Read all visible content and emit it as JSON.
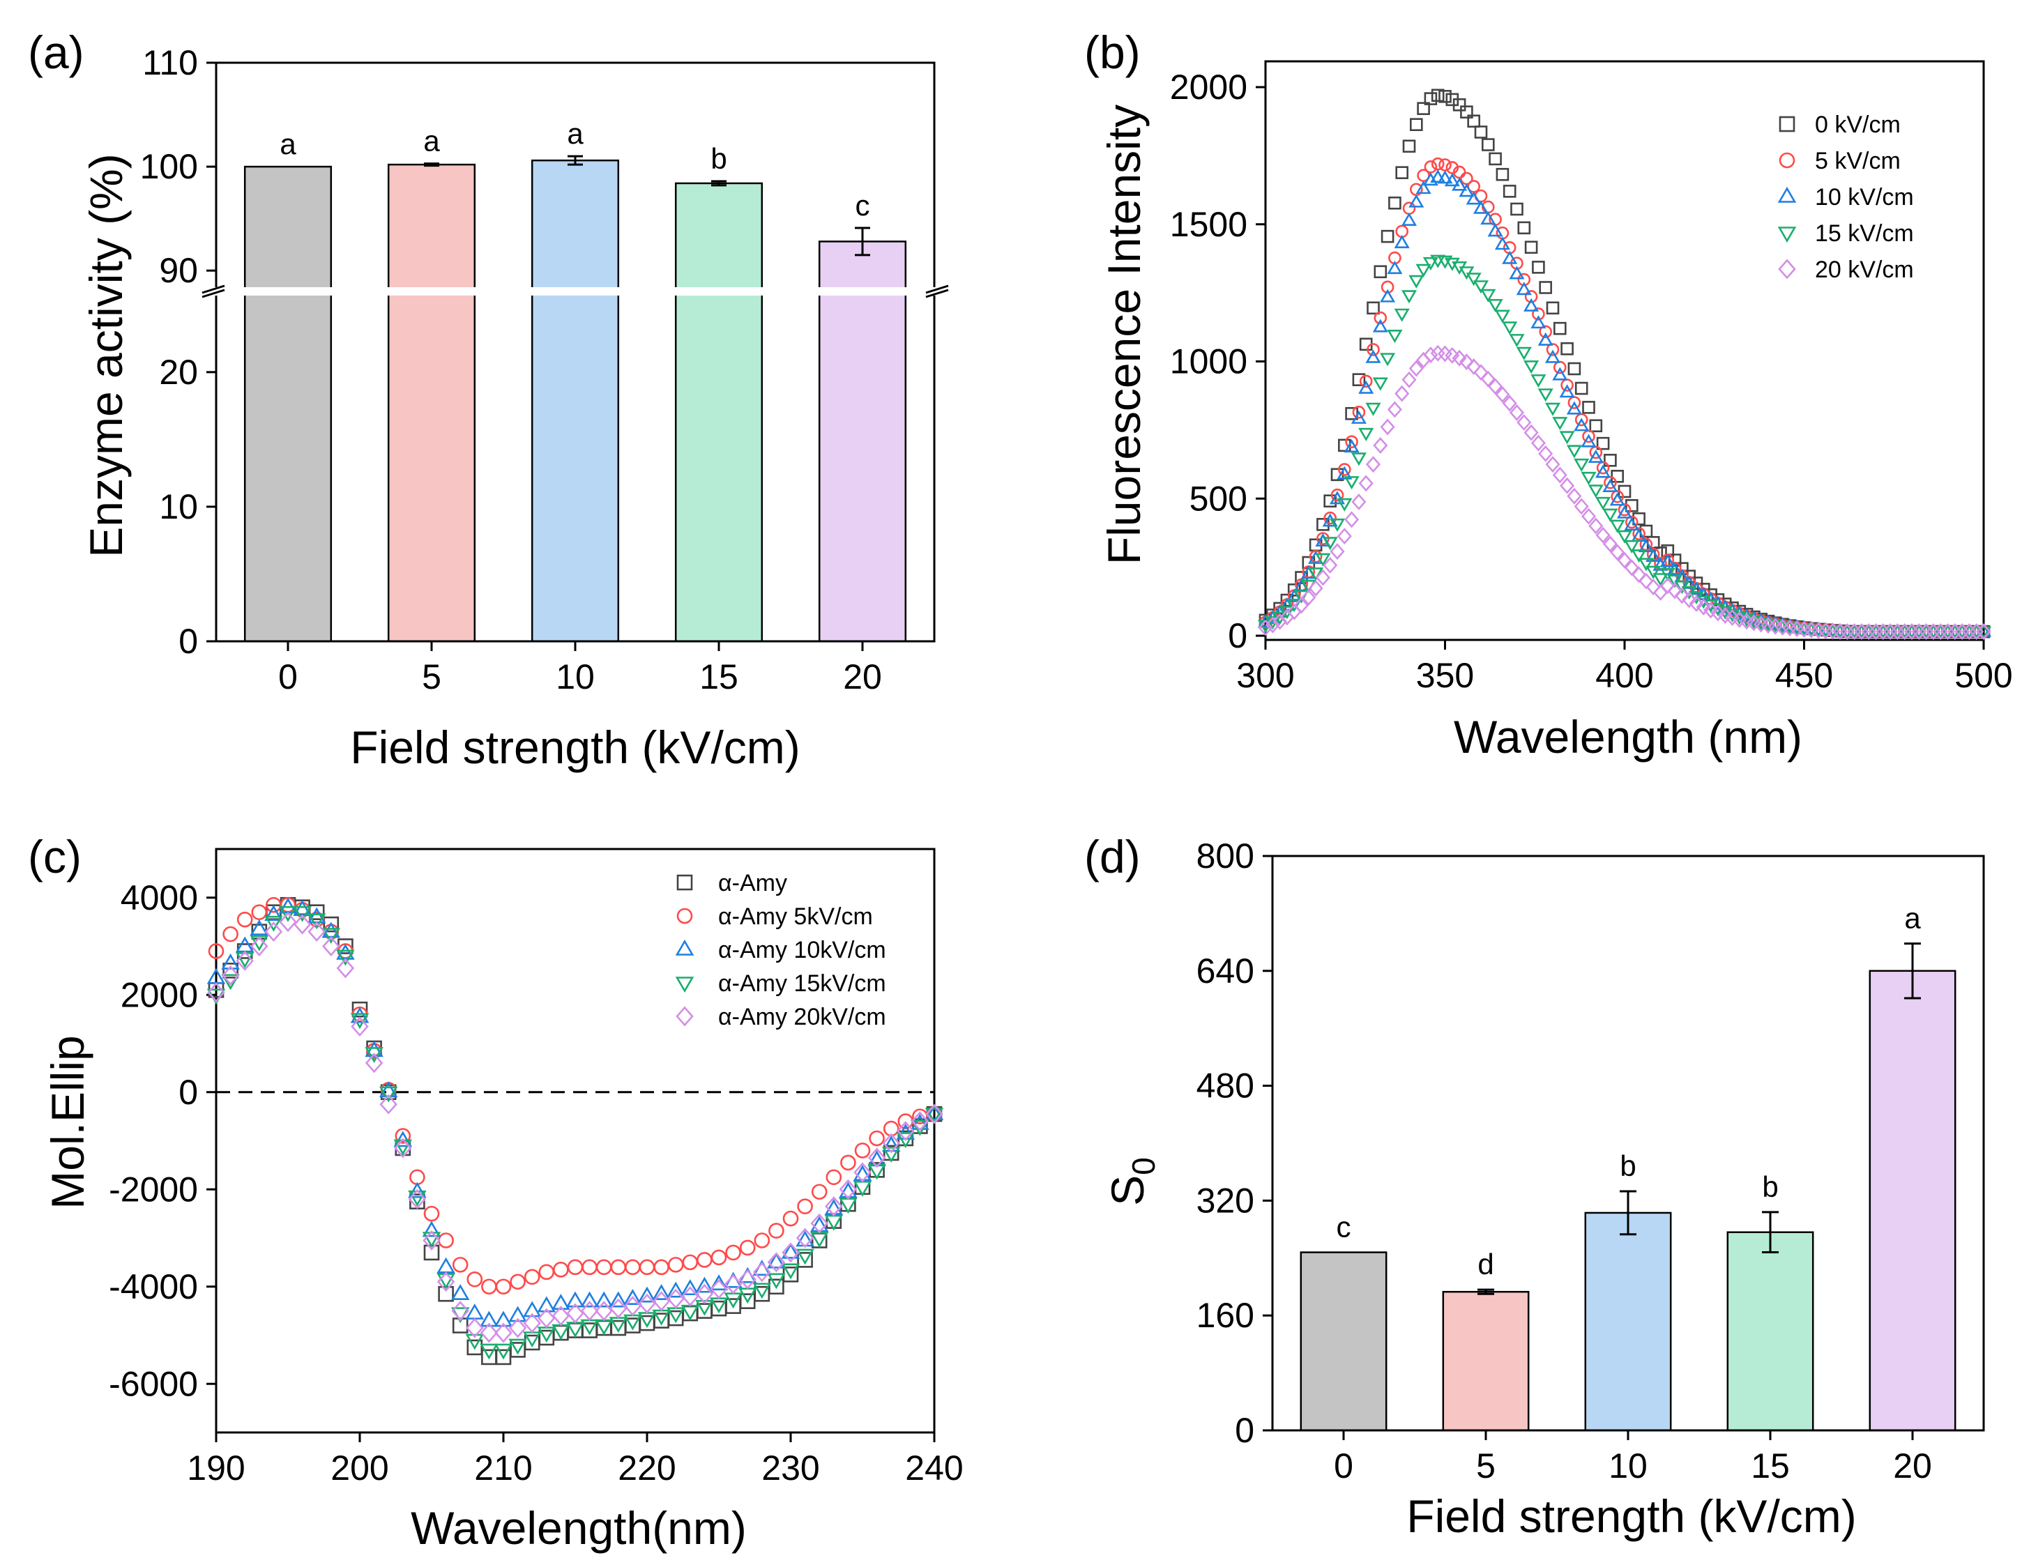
{
  "chart_data": [
    {
      "panel_label": "(a)",
      "type": "bar",
      "categories": [
        "0",
        "5",
        "10",
        "15",
        "20"
      ],
      "values": [
        100.0,
        100.2,
        100.6,
        98.4,
        92.8
      ],
      "errors": [
        0.0,
        0.1,
        0.4,
        0.2,
        1.3
      ],
      "letters": [
        "a",
        "a",
        "a",
        "b",
        "c"
      ],
      "colors": [
        "#c4c4c4",
        "#f7c5c3",
        "#b8d7f5",
        "#b6ecd5",
        "#e8d0f4"
      ],
      "xlabel": "Field strength (kV/cm)",
      "ylabel": "Enzyme activity (%)",
      "broken_axis": true,
      "ylim_lower": [
        0,
        26
      ],
      "ylim_upper": [
        88,
        110
      ],
      "yticks_lower": [
        "0",
        "10",
        "20"
      ],
      "yticks_upper": [
        "90",
        "100",
        "110"
      ]
    },
    {
      "panel_label": "(b)",
      "type": "scatter",
      "xlabel": "Wavelength (nm)",
      "ylabel": "Fluorescence Intensity",
      "xlim": [
        300,
        500
      ],
      "ylim": [
        0,
        2000
      ],
      "xticks": [
        "300",
        "350",
        "400",
        "450",
        "500"
      ],
      "yticks": [
        "0",
        "500",
        "1000",
        "1500",
        "2000"
      ],
      "x_step": 2,
      "peak_wavelength": 348,
      "legend_position": "top-right",
      "series": [
        {
          "name": "0 kV/cm",
          "marker": "square",
          "color": "#444444",
          "peak": 1970
        },
        {
          "name": "5 kV/cm",
          "marker": "circle",
          "color": "#ff4a4a",
          "peak": 1720
        },
        {
          "name": "10 kV/cm",
          "marker": "triangle-up",
          "color": "#1f7fe0",
          "peak": 1670
        },
        {
          "name": "15 kV/cm",
          "marker": "triangle-down",
          "color": "#1aae6e",
          "peak": 1370
        },
        {
          "name": "20 kV/cm",
          "marker": "diamond",
          "color": "#d48ee8",
          "peak": 1030
        }
      ]
    },
    {
      "panel_label": "(c)",
      "type": "scatter",
      "xlabel": "Wavelength(nm)",
      "ylabel": "Mol.Ellip",
      "xlim": [
        190,
        240
      ],
      "ylim": [
        -7000,
        5000
      ],
      "xticks": [
        "190",
        "200",
        "210",
        "220",
        "230",
        "240"
      ],
      "yticks": [
        "-6000",
        "-4000",
        "-2000",
        "0",
        "2000",
        "4000"
      ],
      "zero_line": "dashed",
      "legend_position": "top-right",
      "x": [
        190,
        191,
        192,
        193,
        194,
        195,
        196,
        197,
        198,
        199,
        200,
        201,
        202,
        203,
        204,
        205,
        206,
        207,
        208,
        209,
        210,
        211,
        212,
        213,
        214,
        215,
        216,
        217,
        218,
        219,
        220,
        221,
        222,
        223,
        224,
        225,
        226,
        227,
        228,
        229,
        230,
        231,
        232,
        233,
        234,
        235,
        236,
        237,
        238,
        239,
        240
      ],
      "series": [
        {
          "name": "α-Amy",
          "marker": "square",
          "color": "#444444",
          "values": [
            2100,
            2500,
            2900,
            3300,
            3700,
            3850,
            3800,
            3700,
            3450,
            3000,
            1700,
            900,
            0,
            -1150,
            -2250,
            -3300,
            -4150,
            -4800,
            -5250,
            -5450,
            -5450,
            -5300,
            -5150,
            -5050,
            -4950,
            -4900,
            -4900,
            -4850,
            -4850,
            -4800,
            -4750,
            -4700,
            -4650,
            -4550,
            -4500,
            -4450,
            -4400,
            -4300,
            -4150,
            -4000,
            -3750,
            -3450,
            -3050,
            -2650,
            -2300,
            -1950,
            -1600,
            -1250,
            -950,
            -700,
            -450
          ]
        },
        {
          "name": "α-Amy 5kV/cm",
          "marker": "circle",
          "color": "#ff4a4a",
          "values": [
            2900,
            3250,
            3550,
            3700,
            3850,
            3850,
            3750,
            3550,
            3300,
            2900,
            1600,
            850,
            50,
            -900,
            -1750,
            -2500,
            -3050,
            -3550,
            -3850,
            -4000,
            -4000,
            -3900,
            -3800,
            -3700,
            -3650,
            -3600,
            -3600,
            -3600,
            -3600,
            -3600,
            -3600,
            -3600,
            -3550,
            -3500,
            -3450,
            -3400,
            -3300,
            -3200,
            -3050,
            -2850,
            -2600,
            -2350,
            -2050,
            -1750,
            -1450,
            -1200,
            -950,
            -750,
            -600,
            -500,
            -450
          ]
        },
        {
          "name": "α-Amy 10kV/cm",
          "marker": "triangle-up",
          "color": "#1f7fe0",
          "values": [
            2350,
            2650,
            3000,
            3350,
            3650,
            3800,
            3750,
            3600,
            3300,
            2850,
            1550,
            850,
            20,
            -1000,
            -2050,
            -2850,
            -3600,
            -4150,
            -4550,
            -4700,
            -4700,
            -4600,
            -4500,
            -4400,
            -4350,
            -4300,
            -4300,
            -4300,
            -4300,
            -4250,
            -4200,
            -4150,
            -4100,
            -4050,
            -4000,
            -3950,
            -3900,
            -3800,
            -3650,
            -3500,
            -3300,
            -3050,
            -2750,
            -2400,
            -2050,
            -1700,
            -1400,
            -1100,
            -850,
            -650,
            -450
          ]
        },
        {
          "name": "α-Amy 15kV/cm",
          "marker": "triangle-down",
          "color": "#1aae6e",
          "values": [
            2000,
            2300,
            2750,
            3100,
            3500,
            3700,
            3700,
            3550,
            3250,
            2800,
            1500,
            800,
            -10,
            -1100,
            -2150,
            -3000,
            -3850,
            -4550,
            -5100,
            -5300,
            -5300,
            -5200,
            -5050,
            -4950,
            -4900,
            -4850,
            -4800,
            -4800,
            -4750,
            -4700,
            -4650,
            -4600,
            -4550,
            -4500,
            -4400,
            -4350,
            -4250,
            -4150,
            -4050,
            -3850,
            -3650,
            -3350,
            -3000,
            -2650,
            -2300,
            -1950,
            -1600,
            -1250,
            -950,
            -700,
            -450
          ]
        },
        {
          "name": "α-Amy 20kV/cm",
          "marker": "diamond",
          "color": "#d48ee8",
          "values": [
            2050,
            2400,
            2700,
            3000,
            3300,
            3500,
            3450,
            3300,
            3000,
            2550,
            1350,
            600,
            -250,
            -1150,
            -2200,
            -3050,
            -3900,
            -4500,
            -4850,
            -4950,
            -4950,
            -4850,
            -4750,
            -4650,
            -4600,
            -4550,
            -4500,
            -4500,
            -4450,
            -4400,
            -4350,
            -4300,
            -4250,
            -4200,
            -4150,
            -4050,
            -3950,
            -3850,
            -3700,
            -3500,
            -3300,
            -3000,
            -2700,
            -2350,
            -2000,
            -1650,
            -1350,
            -1050,
            -800,
            -600,
            -450
          ]
        }
      ]
    },
    {
      "panel_label": "(d)",
      "type": "bar",
      "categories": [
        "0",
        "5",
        "10",
        "15",
        "20"
      ],
      "values": [
        248,
        193,
        303,
        276,
        640
      ],
      "errors": [
        0,
        3,
        30,
        28,
        38
      ],
      "letters": [
        "c",
        "d",
        "b",
        "b",
        "a"
      ],
      "colors": [
        "#c4c4c4",
        "#f7c5c3",
        "#b8d7f5",
        "#b6ecd5",
        "#e8d0f4"
      ],
      "xlabel": "Field strength (kV/cm)",
      "ylabel": "S",
      "ylabel_subscript": "0",
      "ylim": [
        0,
        800
      ],
      "yticks": [
        "0",
        "160",
        "320",
        "480",
        "640",
        "800"
      ]
    }
  ]
}
